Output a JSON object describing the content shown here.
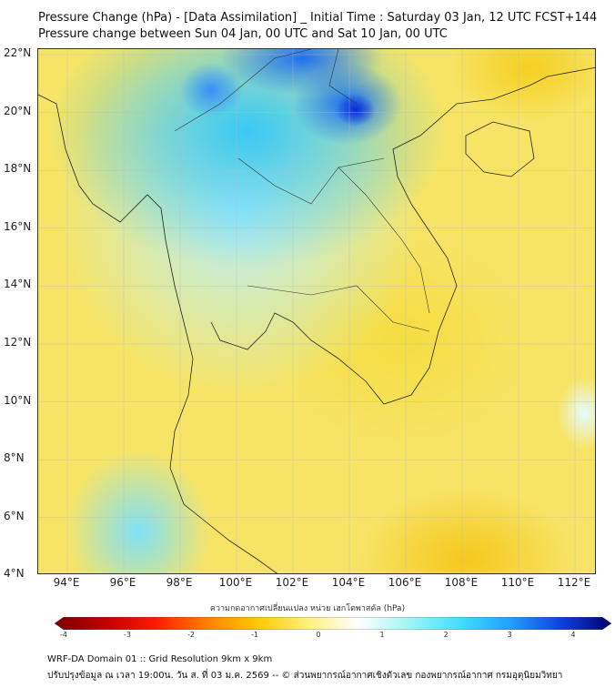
{
  "title": {
    "line1": "Pressure Change (hPa) - [Data Assimilation] _ Initial Time : Saturday 03 Jan, 12 UTC FCST+144",
    "line2": "Pressure change between Sun 04 Jan, 00 UTC and Sat 10 Jan, 00 UTC"
  },
  "lat_labels": [
    "22°N",
    "20°N",
    "18°N",
    "16°N",
    "14°N",
    "12°N",
    "10°N",
    "8°N",
    "6°N",
    "4°N"
  ],
  "lon_labels": [
    "94°E",
    "96°E",
    "98°E",
    "100°E",
    "102°E",
    "104°E",
    "106°E",
    "108°E",
    "110°E",
    "112°E"
  ],
  "colorbar": {
    "title": "ความกดอากาศเปลี่ยนแปลง หน่วย เฮกโตพาสคัล (hPa)",
    "ticks": [
      "-4",
      "-3",
      "-2",
      "-1",
      "0",
      "1",
      "2",
      "3",
      "4"
    ],
    "range": [
      -4,
      4
    ],
    "colors": [
      "#7a0000",
      "#c00000",
      "#ff1a00",
      "#ff8000",
      "#ffc800",
      "#fff07a",
      "#ffffff",
      "#a0f5f5",
      "#40e0ff",
      "#20a0ff",
      "#1040e0",
      "#000070"
    ]
  },
  "footer": {
    "line1": "WRF-DA Domain 01 :: Grid Resolution 9km x 9km",
    "line2": "ปรับปรุงข้อมูล ณ เวลา 19:00น. วัน ส. ที่ 03 ม.ค. 2569 -- © ส่วนพยากรณ์อากาศเชิงตัวเลข กองพยากรณ์อากาศ กรมอุตุนิยมวิทยา"
  }
}
